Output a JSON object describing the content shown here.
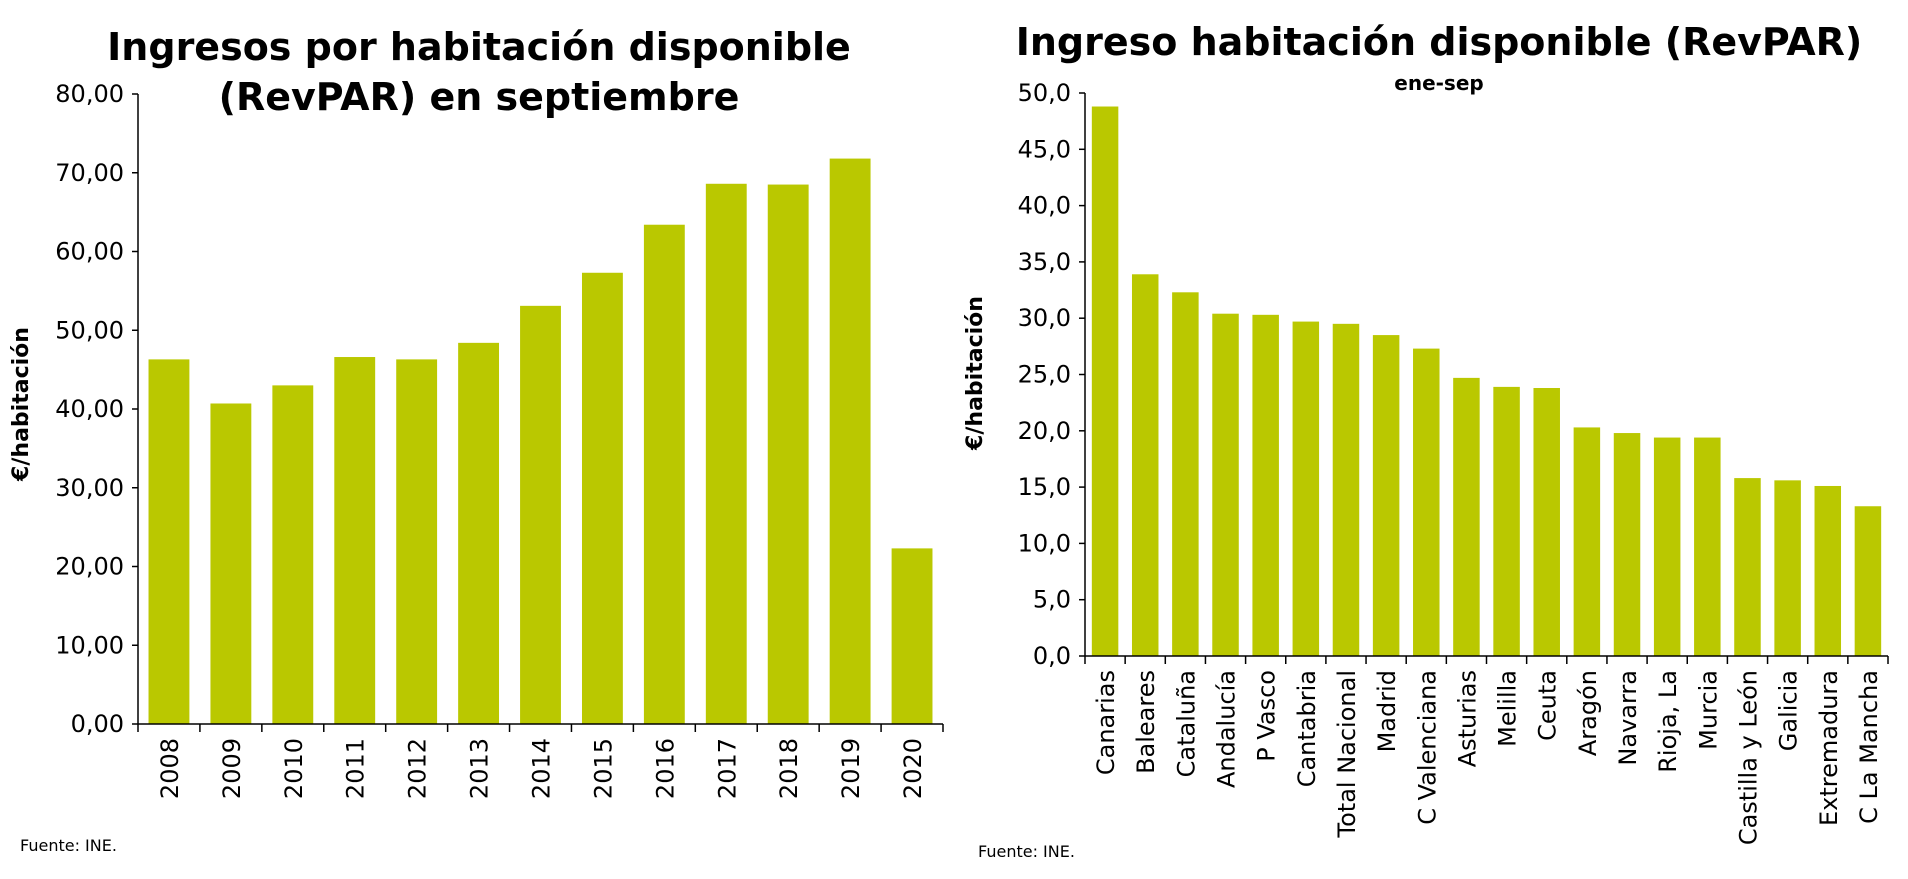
{
  "charts": [
    {
      "type": "bar",
      "title_lines": [
        "Ingresos por habitación disponible",
        "(RevPAR) en septiembre"
      ],
      "subtitle": "",
      "ylabel": "€/habitación",
      "xlabel": "",
      "ylim": [
        0,
        80
      ],
      "yticks": [
        "0,00",
        "10,00",
        "20,00",
        "30,00",
        "40,00",
        "50,00",
        "60,00",
        "70,00",
        "80,00"
      ],
      "categories": [
        "2008",
        "2009",
        "2010",
        "2011",
        "2012",
        "2013",
        "2014",
        "2015",
        "2016",
        "2017",
        "2018",
        "2019",
        "2020"
      ],
      "values": [
        46.3,
        40.7,
        43.0,
        46.6,
        46.3,
        48.4,
        53.1,
        57.3,
        63.4,
        68.6,
        68.5,
        71.8,
        22.3
      ],
      "bar_color": "#bac800",
      "source": "Fuente: INE."
    },
    {
      "type": "bar",
      "title_lines": [
        "Ingreso habitación disponible (RevPAR)"
      ],
      "subtitle": "ene-sep",
      "ylabel": "€/habitación",
      "xlabel": "",
      "ylim": [
        0,
        50
      ],
      "yticks": [
        "0,0",
        "5,0",
        "10,0",
        "15,0",
        "20,0",
        "25,0",
        "30,0",
        "35,0",
        "40,0",
        "45,0",
        "50,0"
      ],
      "categories": [
        "Canarias",
        "Baleares",
        "Cataluña",
        "Andalucía",
        "P Vasco",
        "Cantabria",
        "Total Nacional",
        "Madrid",
        "C Valenciana",
        "Asturias",
        "Melilla",
        "Ceuta",
        "Aragón",
        "Navarra",
        "Rioja, La",
        "Murcia",
        "Castilla y León",
        "Galicia",
        "Extremadura",
        "C La Mancha"
      ],
      "values": [
        48.8,
        33.9,
        32.3,
        30.4,
        30.3,
        29.7,
        29.5,
        28.5,
        27.3,
        24.7,
        23.9,
        23.8,
        20.3,
        19.8,
        19.4,
        19.4,
        15.8,
        15.6,
        15.1,
        13.3
      ],
      "bar_color": "#bac800",
      "source": "Fuente: INE."
    }
  ]
}
